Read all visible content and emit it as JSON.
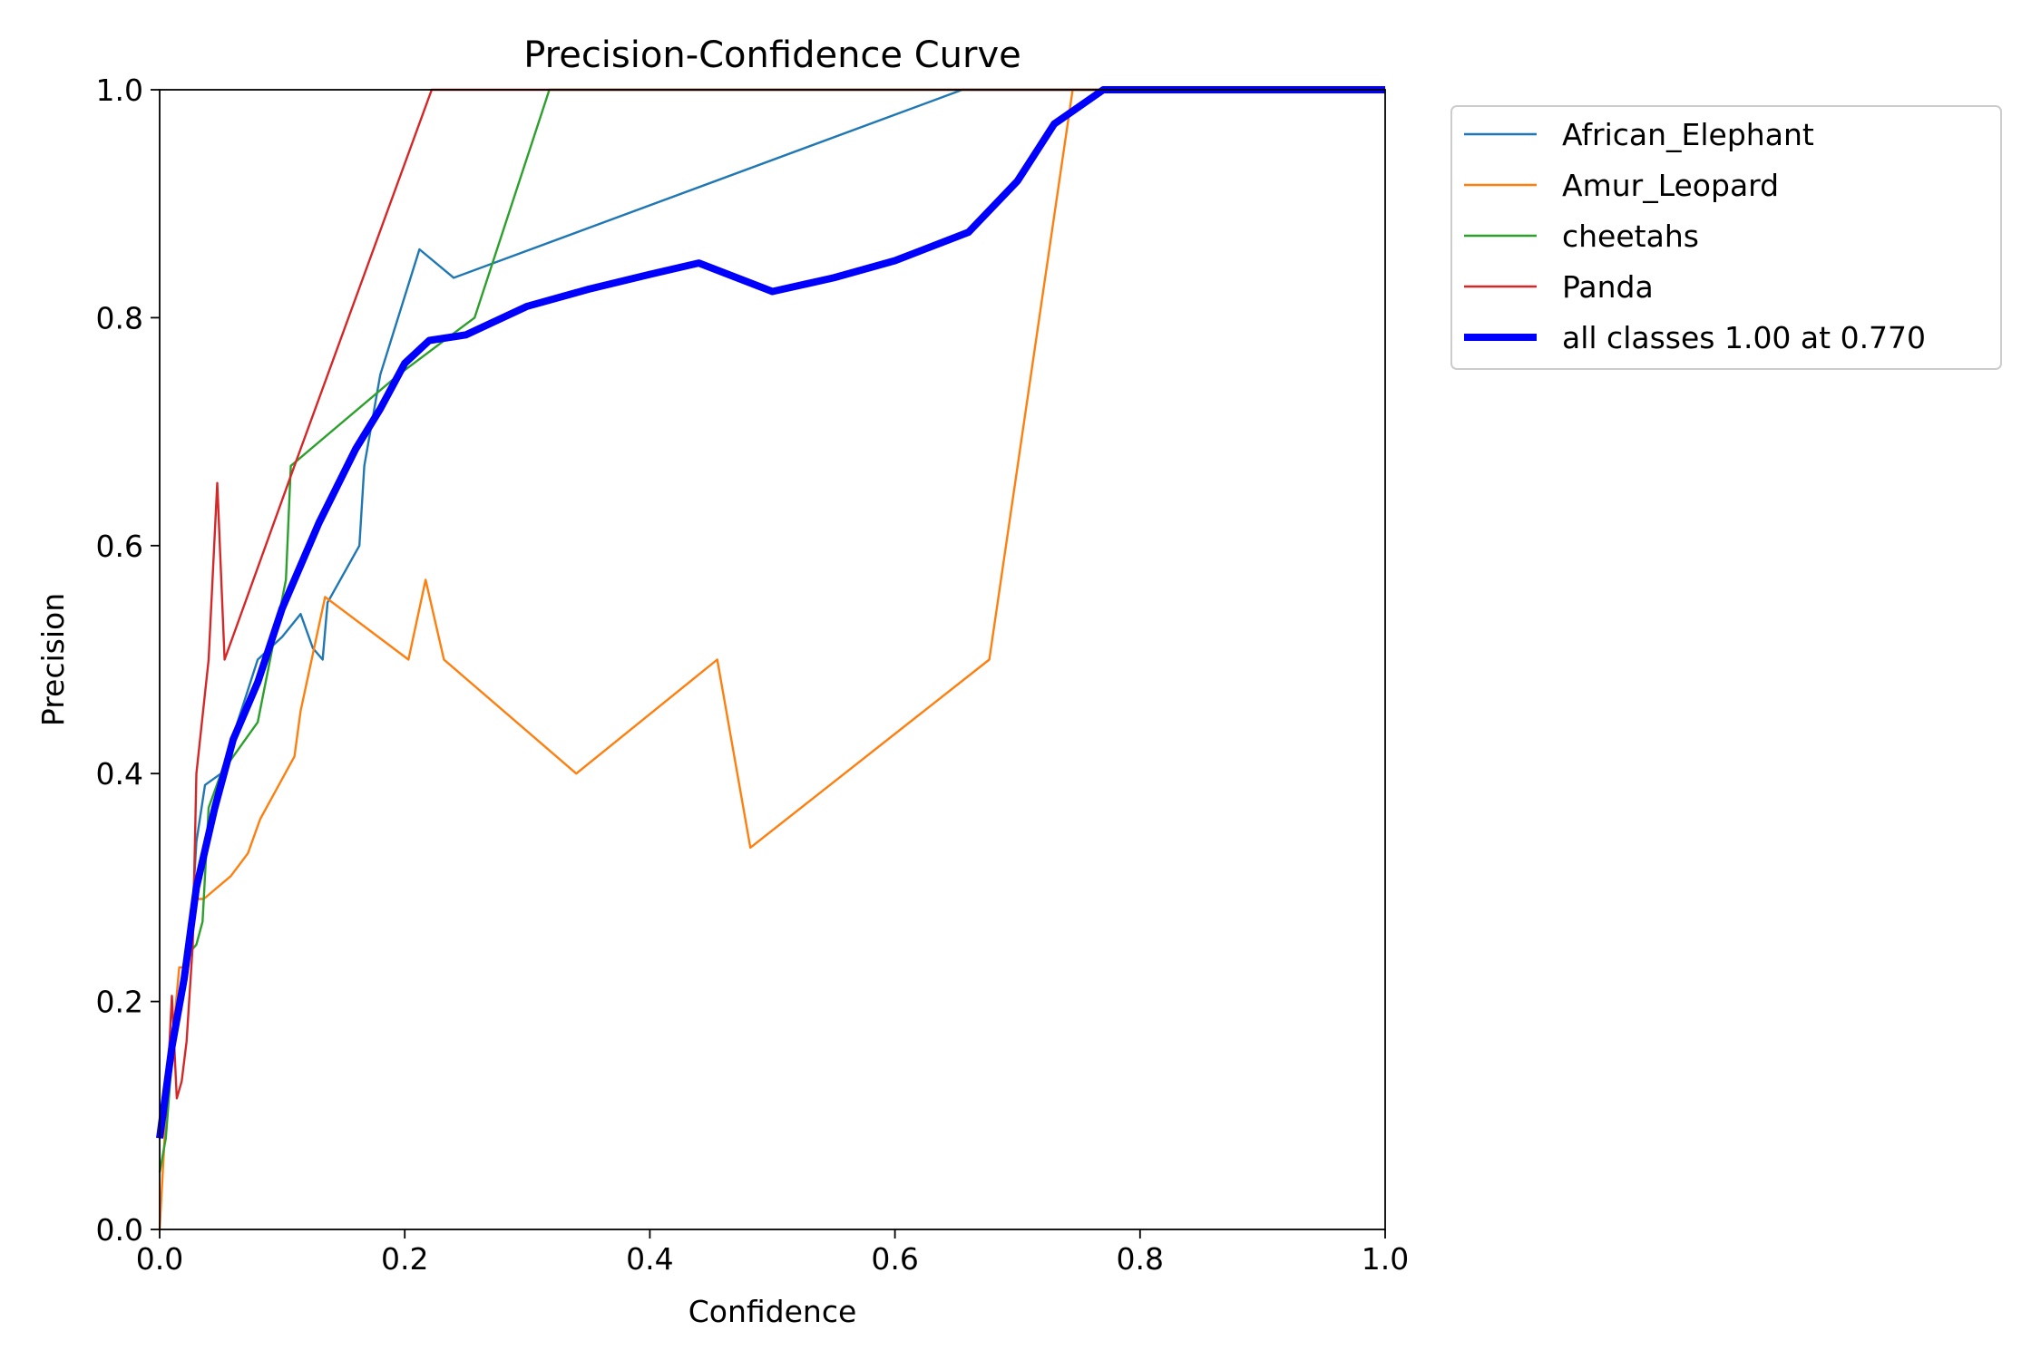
{
  "chart_data": {
    "type": "line",
    "title": "Precision-Confidence Curve",
    "xlabel": "Confidence",
    "ylabel": "Precision",
    "xlim": [
      0,
      1
    ],
    "ylim": [
      0,
      1
    ],
    "xticks": [
      "0.0",
      "0.2",
      "0.4",
      "0.6",
      "0.8",
      "1.0"
    ],
    "yticks": [
      "0.0",
      "0.2",
      "0.4",
      "0.6",
      "0.8",
      "1.0"
    ],
    "grid": false,
    "legend_position": "outside-top-right",
    "series": [
      {
        "name": "African_Elephant",
        "color": "#1f77b4",
        "line_width": "thin",
        "points": [
          [
            0.0,
            0.08
          ],
          [
            0.005,
            0.09
          ],
          [
            0.01,
            0.16
          ],
          [
            0.015,
            0.2
          ],
          [
            0.02,
            0.23
          ],
          [
            0.025,
            0.25
          ],
          [
            0.03,
            0.34
          ],
          [
            0.037,
            0.39
          ],
          [
            0.05,
            0.4
          ],
          [
            0.08,
            0.5
          ],
          [
            0.1,
            0.52
          ],
          [
            0.115,
            0.54
          ],
          [
            0.125,
            0.51
          ],
          [
            0.133,
            0.5
          ],
          [
            0.137,
            0.55
          ],
          [
            0.163,
            0.6
          ],
          [
            0.167,
            0.67
          ],
          [
            0.18,
            0.75
          ],
          [
            0.212,
            0.86
          ],
          [
            0.24,
            0.835
          ],
          [
            0.655,
            1.0
          ],
          [
            1.0,
            1.0
          ]
        ]
      },
      {
        "name": "Amur_Leopard",
        "color": "#ff7f0e",
        "line_width": "thin",
        "points": [
          [
            0.0,
            0.0
          ],
          [
            0.005,
            0.1
          ],
          [
            0.01,
            0.16
          ],
          [
            0.016,
            0.23
          ],
          [
            0.02,
            0.23
          ],
          [
            0.025,
            0.25
          ],
          [
            0.03,
            0.29
          ],
          [
            0.036,
            0.29
          ],
          [
            0.058,
            0.31
          ],
          [
            0.072,
            0.33
          ],
          [
            0.082,
            0.36
          ],
          [
            0.11,
            0.415
          ],
          [
            0.115,
            0.455
          ],
          [
            0.135,
            0.555
          ],
          [
            0.203,
            0.5
          ],
          [
            0.217,
            0.57
          ],
          [
            0.232,
            0.5
          ],
          [
            0.34,
            0.4
          ],
          [
            0.455,
            0.5
          ],
          [
            0.482,
            0.335
          ],
          [
            0.677,
            0.5
          ],
          [
            0.745,
            1.0
          ],
          [
            1.0,
            1.0
          ]
        ]
      },
      {
        "name": "cheetahs",
        "color": "#2ca02c",
        "line_width": "thin",
        "points": [
          [
            0.0,
            0.05
          ],
          [
            0.005,
            0.08
          ],
          [
            0.01,
            0.15
          ],
          [
            0.015,
            0.2
          ],
          [
            0.022,
            0.24
          ],
          [
            0.03,
            0.25
          ],
          [
            0.035,
            0.27
          ],
          [
            0.04,
            0.37
          ],
          [
            0.05,
            0.4
          ],
          [
            0.08,
            0.445
          ],
          [
            0.103,
            0.57
          ],
          [
            0.107,
            0.67
          ],
          [
            0.195,
            0.75
          ],
          [
            0.257,
            0.8
          ],
          [
            0.318,
            1.0
          ],
          [
            1.0,
            1.0
          ]
        ]
      },
      {
        "name": "Panda",
        "color": "#d62728",
        "line_width": "thin",
        "points": [
          [
            0.0,
            0.08
          ],
          [
            0.005,
            0.1
          ],
          [
            0.01,
            0.205
          ],
          [
            0.014,
            0.115
          ],
          [
            0.018,
            0.13
          ],
          [
            0.022,
            0.165
          ],
          [
            0.027,
            0.25
          ],
          [
            0.03,
            0.4
          ],
          [
            0.04,
            0.5
          ],
          [
            0.047,
            0.655
          ],
          [
            0.053,
            0.5
          ],
          [
            0.11,
            0.67
          ],
          [
            0.222,
            1.0
          ],
          [
            1.0,
            1.0
          ]
        ]
      },
      {
        "name": "all classes 1.00 at 0.770",
        "color": "#0000ff",
        "line_width": "thick",
        "points": [
          [
            0.0,
            0.08
          ],
          [
            0.01,
            0.16
          ],
          [
            0.02,
            0.22
          ],
          [
            0.03,
            0.3
          ],
          [
            0.045,
            0.37
          ],
          [
            0.06,
            0.43
          ],
          [
            0.08,
            0.48
          ],
          [
            0.1,
            0.545
          ],
          [
            0.13,
            0.62
          ],
          [
            0.16,
            0.685
          ],
          [
            0.18,
            0.72
          ],
          [
            0.2,
            0.76
          ],
          [
            0.22,
            0.78
          ],
          [
            0.25,
            0.785
          ],
          [
            0.3,
            0.81
          ],
          [
            0.35,
            0.825
          ],
          [
            0.4,
            0.838
          ],
          [
            0.44,
            0.848
          ],
          [
            0.5,
            0.823
          ],
          [
            0.55,
            0.835
          ],
          [
            0.6,
            0.85
          ],
          [
            0.66,
            0.875
          ],
          [
            0.7,
            0.92
          ],
          [
            0.73,
            0.97
          ],
          [
            0.77,
            1.0
          ],
          [
            1.0,
            1.0
          ]
        ]
      }
    ]
  }
}
